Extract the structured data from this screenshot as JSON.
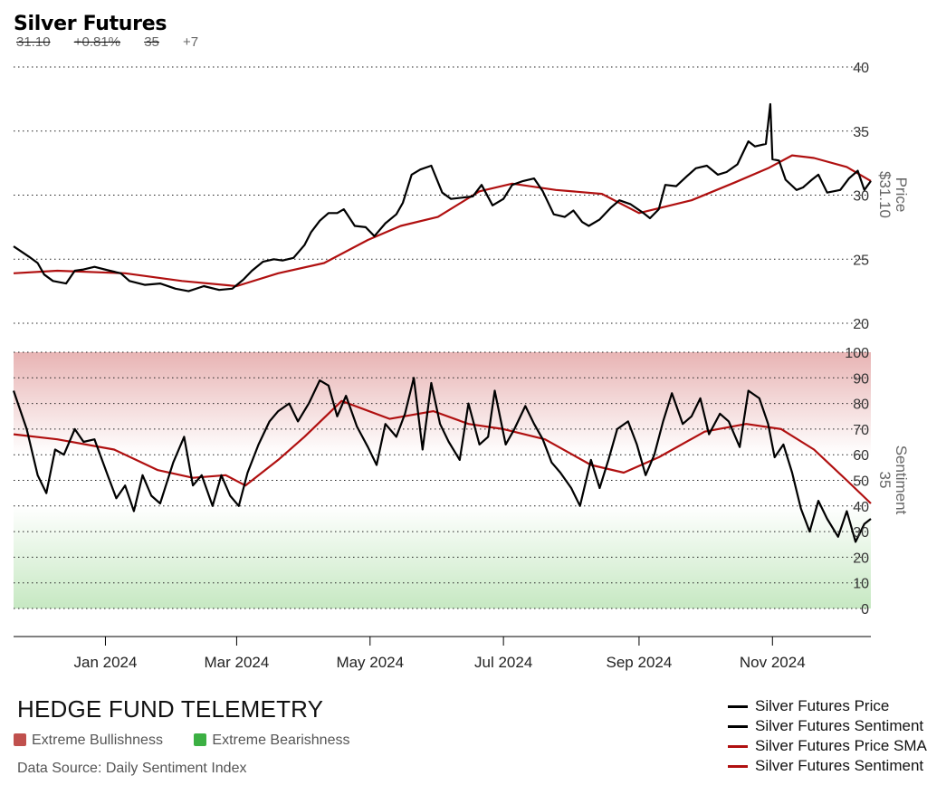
{
  "header": {
    "title": "Silver Futures",
    "price": "31.10",
    "change": "+0.81%",
    "sentiment": "35",
    "sentiment_change": "+7"
  },
  "footer": {
    "brand": "HEDGE FUND TELEMETRY",
    "zones": [
      {
        "label": "Extreme Bullishness",
        "color": "#c0504d"
      },
      {
        "label": "Extreme Bearishness",
        "color": "#3cb043"
      }
    ],
    "source": "Data Source: Daily Sentiment Index"
  },
  "legend": [
    {
      "label": "Silver Futures Price",
      "color": "#000000"
    },
    {
      "label": "Silver Futures Sentiment",
      "color": "#000000"
    },
    {
      "label": "Silver Futures Price SMA",
      "color": "#b01010"
    },
    {
      "label": "Silver Futures Sentiment SMA",
      "color": "#b01010"
    }
  ],
  "chart_data": [
    {
      "type": "line",
      "title": "Silver Futures",
      "ylabel": "Price",
      "last_value_label": "$31.10",
      "ylim": [
        20,
        40
      ],
      "yticks": [
        20,
        25,
        30,
        35,
        40
      ],
      "grid": true,
      "x_month_labels": [
        "Jan 2024",
        "Mar 2024",
        "May 2024",
        "Jul 2024",
        "Sep 2024",
        "Nov 2024"
      ],
      "x_month_dates": [
        "2024-01-01",
        "2024-03-01",
        "2024-05-01",
        "2024-07-01",
        "2024-09-01",
        "2024-11-01"
      ],
      "x_range": [
        "2023-11-20",
        "2024-12-16"
      ],
      "series": [
        {
          "name": "Silver Futures Price",
          "color": "#000000",
          "points": [
            [
              "2023-11-20",
              26.0
            ],
            [
              "2023-11-27",
              25.2
            ],
            [
              "2023-12-01",
              24.7
            ],
            [
              "2023-12-04",
              23.8
            ],
            [
              "2023-12-08",
              23.3
            ],
            [
              "2023-12-14",
              23.1
            ],
            [
              "2023-12-18",
              24.1
            ],
            [
              "2023-12-22",
              24.2
            ],
            [
              "2023-12-27",
              24.4
            ],
            [
              "2024-01-03",
              24.1
            ],
            [
              "2024-01-08",
              23.9
            ],
            [
              "2024-01-12",
              23.3
            ],
            [
              "2024-01-19",
              23.0
            ],
            [
              "2024-01-26",
              23.1
            ],
            [
              "2024-02-02",
              22.7
            ],
            [
              "2024-02-08",
              22.5
            ],
            [
              "2024-02-15",
              22.9
            ],
            [
              "2024-02-22",
              22.6
            ],
            [
              "2024-02-28",
              22.7
            ],
            [
              "2024-03-04",
              23.4
            ],
            [
              "2024-03-08",
              24.1
            ],
            [
              "2024-03-13",
              24.8
            ],
            [
              "2024-03-18",
              25.0
            ],
            [
              "2024-03-22",
              24.9
            ],
            [
              "2024-03-27",
              25.1
            ],
            [
              "2024-04-01",
              26.1
            ],
            [
              "2024-04-04",
              27.1
            ],
            [
              "2024-04-08",
              28.0
            ],
            [
              "2024-04-12",
              28.6
            ],
            [
              "2024-04-16",
              28.6
            ],
            [
              "2024-04-19",
              28.9
            ],
            [
              "2024-04-24",
              27.6
            ],
            [
              "2024-04-29",
              27.5
            ],
            [
              "2024-05-03",
              26.8
            ],
            [
              "2024-05-08",
              27.8
            ],
            [
              "2024-05-13",
              28.5
            ],
            [
              "2024-05-16",
              29.4
            ],
            [
              "2024-05-20",
              31.6
            ],
            [
              "2024-05-24",
              32.0
            ],
            [
              "2024-05-29",
              32.3
            ],
            [
              "2024-06-03",
              30.2
            ],
            [
              "2024-06-07",
              29.7
            ],
            [
              "2024-06-12",
              29.8
            ],
            [
              "2024-06-17",
              29.9
            ],
            [
              "2024-06-21",
              30.8
            ],
            [
              "2024-06-26",
              29.2
            ],
            [
              "2024-07-01",
              29.7
            ],
            [
              "2024-07-05",
              30.8
            ],
            [
              "2024-07-10",
              31.1
            ],
            [
              "2024-07-15",
              31.3
            ],
            [
              "2024-07-19",
              30.3
            ],
            [
              "2024-07-24",
              28.5
            ],
            [
              "2024-07-29",
              28.3
            ],
            [
              "2024-08-02",
              28.8
            ],
            [
              "2024-08-06",
              27.9
            ],
            [
              "2024-08-09",
              27.6
            ],
            [
              "2024-08-14",
              28.1
            ],
            [
              "2024-08-19",
              29.0
            ],
            [
              "2024-08-23",
              29.6
            ],
            [
              "2024-08-28",
              29.3
            ],
            [
              "2024-09-03",
              28.6
            ],
            [
              "2024-09-06",
              28.2
            ],
            [
              "2024-09-10",
              28.9
            ],
            [
              "2024-09-13",
              30.8
            ],
            [
              "2024-09-18",
              30.7
            ],
            [
              "2024-09-23",
              31.5
            ],
            [
              "2024-09-27",
              32.1
            ],
            [
              "2024-10-02",
              32.3
            ],
            [
              "2024-10-07",
              31.6
            ],
            [
              "2024-10-11",
              31.8
            ],
            [
              "2024-10-16",
              32.4
            ],
            [
              "2024-10-21",
              34.2
            ],
            [
              "2024-10-24",
              33.8
            ],
            [
              "2024-10-29",
              34.0
            ],
            [
              "2024-10-31",
              37.1
            ],
            [
              "2024-11-01",
              32.8
            ],
            [
              "2024-11-04",
              32.7
            ],
            [
              "2024-11-07",
              31.2
            ],
            [
              "2024-11-12",
              30.4
            ],
            [
              "2024-11-15",
              30.6
            ],
            [
              "2024-11-19",
              31.2
            ],
            [
              "2024-11-22",
              31.6
            ],
            [
              "2024-11-26",
              30.2
            ],
            [
              "2024-12-02",
              30.4
            ],
            [
              "2024-12-06",
              31.3
            ],
            [
              "2024-12-10",
              31.9
            ],
            [
              "2024-12-13",
              30.4
            ],
            [
              "2024-12-16",
              31.1
            ]
          ]
        },
        {
          "name": "Silver Futures Price SMA",
          "color": "#b01010",
          "points": [
            [
              "2023-11-20",
              23.9
            ],
            [
              "2023-12-10",
              24.1
            ],
            [
              "2024-01-10",
              23.9
            ],
            [
              "2024-02-05",
              23.3
            ],
            [
              "2024-03-01",
              22.9
            ],
            [
              "2024-03-20",
              23.9
            ],
            [
              "2024-04-10",
              24.7
            ],
            [
              "2024-04-30",
              26.5
            ],
            [
              "2024-05-15",
              27.6
            ],
            [
              "2024-06-01",
              28.3
            ],
            [
              "2024-06-20",
              30.3
            ],
            [
              "2024-07-05",
              30.9
            ],
            [
              "2024-07-25",
              30.4
            ],
            [
              "2024-08-15",
              30.1
            ],
            [
              "2024-09-01",
              28.6
            ],
            [
              "2024-09-25",
              29.6
            ],
            [
              "2024-10-15",
              31.0
            ],
            [
              "2024-10-30",
              32.1
            ],
            [
              "2024-11-10",
              33.1
            ],
            [
              "2024-11-20",
              32.9
            ],
            [
              "2024-12-05",
              32.2
            ],
            [
              "2024-12-16",
              31.1
            ]
          ]
        }
      ]
    },
    {
      "type": "line",
      "title": "",
      "ylabel": "Sentiment",
      "last_value_label": "35",
      "ylim": [
        0,
        100
      ],
      "yticks": [
        0,
        10,
        20,
        30,
        40,
        50,
        60,
        70,
        80,
        90,
        100
      ],
      "zones": [
        {
          "label": "Extreme Bullishness",
          "from": 90,
          "to": 100,
          "color": "#c0504d"
        },
        {
          "label": "Extreme Bearishness",
          "from": 0,
          "to": 30,
          "color": "#3cb043"
        }
      ],
      "series": [
        {
          "name": "Silver Futures Sentiment",
          "color": "#000000",
          "points": [
            [
              "2023-11-20",
              85
            ],
            [
              "2023-11-26",
              70
            ],
            [
              "2023-12-01",
              52
            ],
            [
              "2023-12-05",
              45
            ],
            [
              "2023-12-09",
              62
            ],
            [
              "2023-12-13",
              60
            ],
            [
              "2023-12-18",
              70
            ],
            [
              "2023-12-22",
              65
            ],
            [
              "2023-12-27",
              66
            ],
            [
              "2024-01-02",
              52
            ],
            [
              "2024-01-06",
              43
            ],
            [
              "2024-01-10",
              48
            ],
            [
              "2024-01-14",
              38
            ],
            [
              "2024-01-18",
              52
            ],
            [
              "2024-01-22",
              44
            ],
            [
              "2024-01-26",
              41
            ],
            [
              "2024-02-01",
              57
            ],
            [
              "2024-02-06",
              67
            ],
            [
              "2024-02-10",
              48
            ],
            [
              "2024-02-14",
              52
            ],
            [
              "2024-02-19",
              40
            ],
            [
              "2024-02-23",
              52
            ],
            [
              "2024-02-27",
              44
            ],
            [
              "2024-03-02",
              40
            ],
            [
              "2024-03-06",
              53
            ],
            [
              "2024-03-11",
              64
            ],
            [
              "2024-03-16",
              73
            ],
            [
              "2024-03-20",
              77
            ],
            [
              "2024-03-25",
              80
            ],
            [
              "2024-03-29",
              73
            ],
            [
              "2024-04-03",
              80
            ],
            [
              "2024-04-08",
              89
            ],
            [
              "2024-04-12",
              87
            ],
            [
              "2024-04-16",
              75
            ],
            [
              "2024-04-20",
              83
            ],
            [
              "2024-04-25",
              71
            ],
            [
              "2024-04-30",
              63
            ],
            [
              "2024-05-04",
              56
            ],
            [
              "2024-05-08",
              72
            ],
            [
              "2024-05-13",
              67
            ],
            [
              "2024-05-17",
              76
            ],
            [
              "2024-05-21",
              90
            ],
            [
              "2024-05-25",
              62
            ],
            [
              "2024-05-29",
              88
            ],
            [
              "2024-06-02",
              72
            ],
            [
              "2024-06-06",
              65
            ],
            [
              "2024-06-11",
              58
            ],
            [
              "2024-06-15",
              80
            ],
            [
              "2024-06-20",
              64
            ],
            [
              "2024-06-24",
              67
            ],
            [
              "2024-06-27",
              85
            ],
            [
              "2024-07-02",
              64
            ],
            [
              "2024-07-06",
              70
            ],
            [
              "2024-07-11",
              79
            ],
            [
              "2024-07-15",
              72
            ],
            [
              "2024-07-19",
              66
            ],
            [
              "2024-07-23",
              57
            ],
            [
              "2024-07-27",
              53
            ],
            [
              "2024-08-01",
              47
            ],
            [
              "2024-08-05",
              40
            ],
            [
              "2024-08-10",
              58
            ],
            [
              "2024-08-14",
              47
            ],
            [
              "2024-08-18",
              58
            ],
            [
              "2024-08-22",
              70
            ],
            [
              "2024-08-27",
              73
            ],
            [
              "2024-08-31",
              64
            ],
            [
              "2024-09-04",
              52
            ],
            [
              "2024-09-08",
              60
            ],
            [
              "2024-09-12",
              73
            ],
            [
              "2024-09-16",
              84
            ],
            [
              "2024-09-21",
              72
            ],
            [
              "2024-09-25",
              75
            ],
            [
              "2024-09-29",
              82
            ],
            [
              "2024-10-03",
              68
            ],
            [
              "2024-10-08",
              76
            ],
            [
              "2024-10-12",
              73
            ],
            [
              "2024-10-17",
              63
            ],
            [
              "2024-10-21",
              85
            ],
            [
              "2024-10-26",
              82
            ],
            [
              "2024-10-30",
              72
            ],
            [
              "2024-11-02",
              59
            ],
            [
              "2024-11-06",
              64
            ],
            [
              "2024-11-10",
              53
            ],
            [
              "2024-11-14",
              39
            ],
            [
              "2024-11-18",
              30
            ],
            [
              "2024-11-22",
              42
            ],
            [
              "2024-11-26",
              35
            ],
            [
              "2024-12-01",
              28
            ],
            [
              "2024-12-05",
              38
            ],
            [
              "2024-12-09",
              26
            ],
            [
              "2024-12-13",
              33
            ],
            [
              "2024-12-16",
              35
            ]
          ]
        },
        {
          "name": "Silver Futures Sentiment SMA",
          "color": "#b01010",
          "points": [
            [
              "2023-11-20",
              68
            ],
            [
              "2023-12-10",
              66
            ],
            [
              "2024-01-05",
              62
            ],
            [
              "2024-01-25",
              54
            ],
            [
              "2024-02-10",
              51
            ],
            [
              "2024-02-25",
              52
            ],
            [
              "2024-03-05",
              48
            ],
            [
              "2024-03-20",
              58
            ],
            [
              "2024-04-01",
              67
            ],
            [
              "2024-04-18",
              81
            ],
            [
              "2024-05-10",
              74
            ],
            [
              "2024-05-30",
              77
            ],
            [
              "2024-06-15",
              72
            ],
            [
              "2024-07-01",
              70
            ],
            [
              "2024-07-20",
              66
            ],
            [
              "2024-08-10",
              56
            ],
            [
              "2024-08-25",
              53
            ],
            [
              "2024-09-10",
              59
            ],
            [
              "2024-10-01",
              69
            ],
            [
              "2024-10-20",
              72
            ],
            [
              "2024-11-05",
              70
            ],
            [
              "2024-11-20",
              62
            ],
            [
              "2024-12-05",
              50
            ],
            [
              "2024-12-16",
              41
            ]
          ]
        }
      ]
    }
  ]
}
